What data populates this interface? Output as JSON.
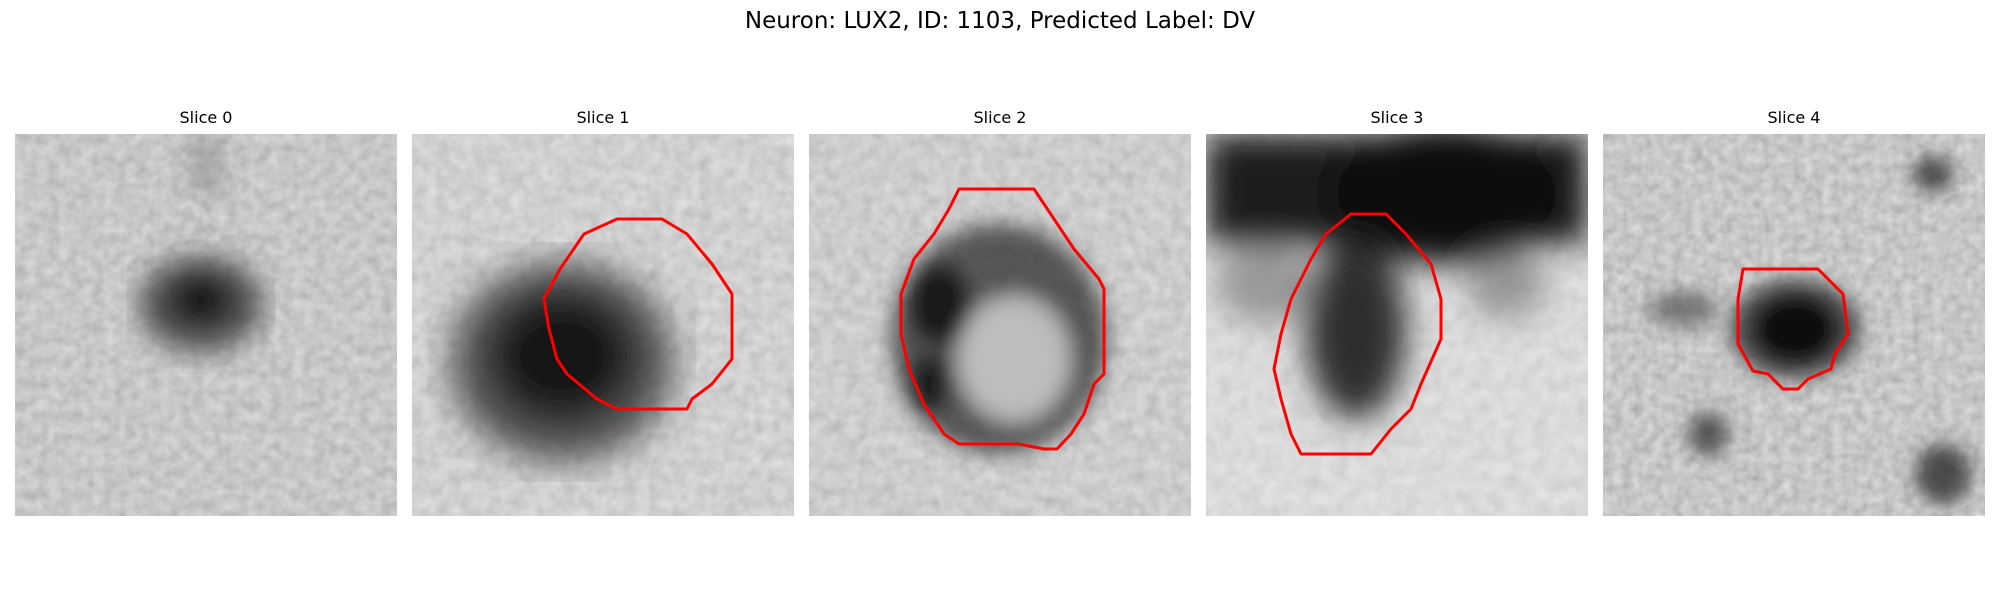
{
  "figure": {
    "title": "Neuron: LUX2, ID: 1103, Predicted Label: DV"
  },
  "slices": [
    {
      "label": "Slice 0"
    },
    {
      "label": "Slice 1"
    },
    {
      "label": "Slice 2"
    },
    {
      "label": "Slice 3"
    },
    {
      "label": "Slice 4"
    }
  ],
  "colors": {
    "outline": "#ff0000",
    "background": "#ffffff"
  }
}
